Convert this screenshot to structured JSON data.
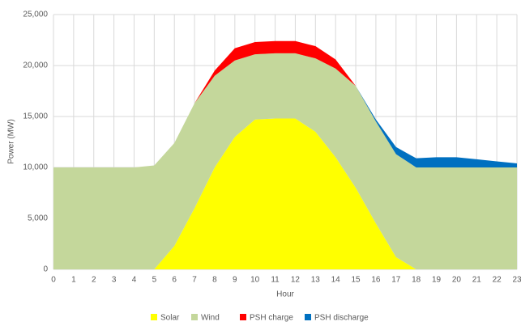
{
  "chart_data": {
    "type": "stacked_area",
    "x_label": "Hour",
    "y_label": "Power (MW)",
    "x": [
      0,
      1,
      2,
      3,
      4,
      5,
      6,
      7,
      8,
      9,
      10,
      11,
      12,
      13,
      14,
      15,
      16,
      17,
      18,
      19,
      20,
      21,
      22,
      23
    ],
    "xlim": [
      0,
      23
    ],
    "xticks": [
      0,
      1,
      2,
      3,
      4,
      5,
      6,
      7,
      8,
      9,
      10,
      11,
      12,
      13,
      14,
      15,
      16,
      17,
      18,
      19,
      20,
      21,
      22,
      23
    ],
    "ylim": [
      0,
      25000
    ],
    "yticks": [
      0,
      {
        "value": 5000,
        "label": "5,000"
      },
      {
        "value": 10000,
        "label": "10,000"
      },
      {
        "value": 15000,
        "label": "15,000"
      },
      {
        "value": 20000,
        "label": "20,000"
      },
      {
        "value": 25000,
        "label": "25,000"
      }
    ],
    "grid": true,
    "legend": "bottom",
    "series": [
      {
        "name": "Solar",
        "color": "#ffff00",
        "values": [
          0,
          0,
          0,
          0,
          0,
          0,
          2300,
          6000,
          10000,
          13000,
          14700,
          14800,
          14800,
          13500,
          11000,
          8000,
          4500,
          1200,
          0,
          0,
          0,
          0,
          0,
          0
        ]
      },
      {
        "name": "Wind",
        "color": "#c4d79b",
        "values": [
          10000,
          10000,
          10000,
          10000,
          10000,
          10200,
          10100,
          10300,
          9000,
          7500,
          6400,
          6400,
          6400,
          7200,
          8700,
          10000,
          10000,
          10100,
          10000,
          10000,
          10000,
          10000,
          10000,
          10000
        ]
      },
      {
        "name": "PSH charge",
        "color": "#ff0000",
        "values": [
          0,
          0,
          0,
          0,
          0,
          0,
          0,
          0,
          500,
          1200,
          1200,
          1200,
          1200,
          1200,
          900,
          0,
          0,
          0,
          0,
          0,
          0,
          0,
          0,
          0
        ]
      },
      {
        "name": "PSH discharge",
        "color": "#0070c0",
        "values": [
          0,
          0,
          0,
          0,
          0,
          0,
          0,
          0,
          0,
          0,
          0,
          0,
          0,
          0,
          0,
          0,
          200,
          700,
          900,
          1000,
          1000,
          800,
          600,
          400
        ]
      }
    ]
  }
}
